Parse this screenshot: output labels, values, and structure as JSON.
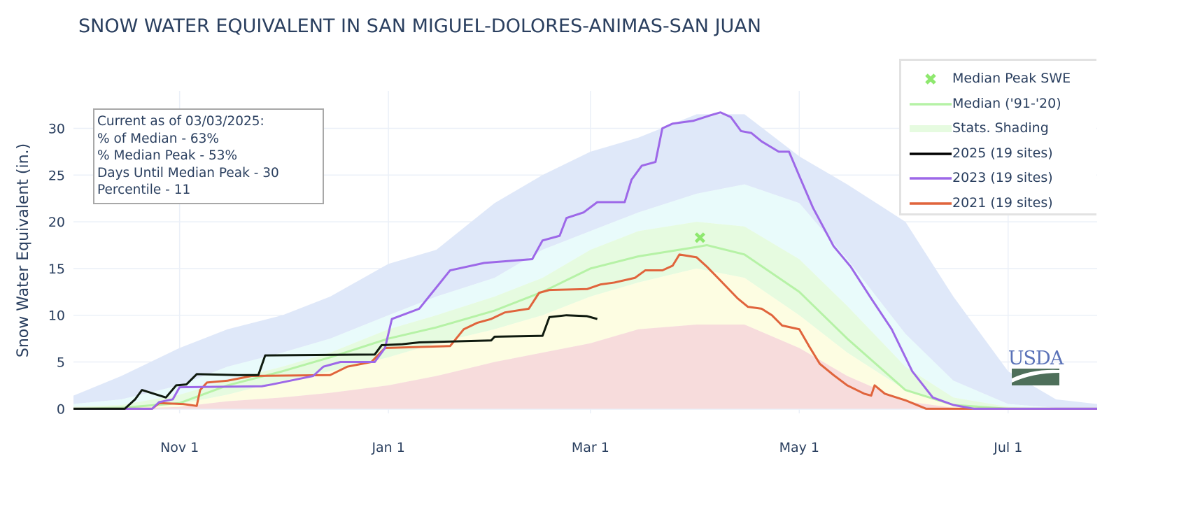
{
  "chart_data": {
    "type": "area",
    "title": "SNOW WATER EQUIVALENT IN SAN MIGUEL-DOLORES-ANIMAS-SAN JUAN",
    "ylabel": "Snow Water Equivalent (in.)",
    "xlabel": "",
    "x_range": [
      "10-01",
      "07-27"
    ],
    "ylim": [
      -0.5,
      34
    ],
    "y_ticks": [
      0,
      5,
      10,
      15,
      20,
      25,
      30
    ],
    "x_ticks": [
      {
        "date": "11-01",
        "label": "Nov 1"
      },
      {
        "date": "01-01",
        "label": "Jan 1"
      },
      {
        "date": "03-01",
        "label": "Mar 1"
      },
      {
        "date": "05-01",
        "label": "May 1"
      },
      {
        "date": "07-01",
        "label": "Jul 1"
      }
    ],
    "grid": true,
    "legend_placement": "top-right",
    "annotation": {
      "lines": [
        "Current as of 03/03/2025:",
        "% of Median - 63%",
        "% Median Peak - 53%",
        "Days Until Median Peak - 30",
        "Percentile - 11"
      ]
    },
    "stats_shading": {
      "dates": [
        "10-01",
        "10-15",
        "11-01",
        "11-15",
        "12-01",
        "12-15",
        "01-01",
        "01-15",
        "02-01",
        "02-15",
        "03-01",
        "03-15",
        "04-01",
        "04-15",
        "05-01",
        "05-15",
        "06-01",
        "06-15",
        "07-01",
        "07-15",
        "07-27"
      ],
      "min": [
        0,
        0,
        0,
        0,
        0,
        0,
        0,
        0,
        0,
        0,
        0,
        0,
        0,
        0,
        0,
        0,
        0,
        0,
        0,
        0,
        0
      ],
      "p10": [
        0,
        0,
        0.2,
        0.8,
        1.2,
        1.7,
        2.5,
        3.5,
        5,
        6,
        7,
        8.5,
        9,
        9,
        6.5,
        3.5,
        0.8,
        0.1,
        0,
        0,
        0
      ],
      "p30": [
        0,
        0.1,
        0.5,
        1.5,
        3,
        4,
        5.5,
        7,
        8.5,
        10,
        12,
        13.5,
        15,
        14,
        10,
        6,
        2,
        0.4,
        0,
        0,
        0
      ],
      "p70": [
        0.2,
        0.4,
        1.5,
        3,
        4.5,
        6,
        8.5,
        10,
        12,
        14,
        17,
        19,
        20,
        19.5,
        16,
        11,
        4.5,
        1.2,
        0.2,
        0,
        0
      ],
      "p90": [
        0.5,
        1,
        2.5,
        4.5,
        6,
        7.5,
        10,
        12,
        14,
        17,
        19,
        21,
        23,
        24,
        22,
        16,
        8,
        3,
        0.5,
        0.1,
        0
      ],
      "max": [
        1.4,
        3.5,
        6.5,
        8.5,
        10,
        12,
        15.5,
        17,
        22,
        25,
        27.5,
        29,
        31.5,
        31.5,
        27,
        24,
        20,
        12,
        4,
        1,
        0.5
      ],
      "colors": {
        "min_p10": "#f7dcdc",
        "p10_p30": "#fdfde2",
        "p30_p70": "#e6fbe0",
        "p70_p90": "#e9fbfb",
        "p90_max": "#dfe8f9"
      }
    },
    "median_peak": {
      "name": "Median Peak SWE",
      "date": "04-02",
      "value": 18.3,
      "color": "#8ee86e"
    },
    "series": [
      {
        "name": "Median ('91-'20)",
        "color": "#b6f2a6",
        "points": [
          [
            "10-01",
            0
          ],
          [
            "10-15",
            0.1
          ],
          [
            "11-01",
            0.6
          ],
          [
            "11-15",
            2.5
          ],
          [
            "12-01",
            4
          ],
          [
            "12-15",
            5.5
          ],
          [
            "01-01",
            7.5
          ],
          [
            "01-15",
            8.7
          ],
          [
            "02-01",
            10.5
          ],
          [
            "02-15",
            12.5
          ],
          [
            "03-01",
            15
          ],
          [
            "03-15",
            16.3
          ],
          [
            "04-01",
            17.3
          ],
          [
            "04-04",
            17.5
          ],
          [
            "04-15",
            16.5
          ],
          [
            "05-01",
            12.5
          ],
          [
            "05-15",
            7.5
          ],
          [
            "06-01",
            2
          ],
          [
            "06-15",
            0.4
          ],
          [
            "07-01",
            0
          ],
          [
            "07-27",
            0
          ]
        ]
      },
      {
        "name": "2021 (19 sites)",
        "color": "#e0643c",
        "points": [
          [
            "10-01",
            0
          ],
          [
            "10-24",
            0
          ],
          [
            "10-26",
            0.6
          ],
          [
            "11-02",
            0.5
          ],
          [
            "11-06",
            0.3
          ],
          [
            "11-07",
            2
          ],
          [
            "11-09",
            2.8
          ],
          [
            "11-15",
            3
          ],
          [
            "11-22",
            3.5
          ],
          [
            "12-15",
            3.6
          ],
          [
            "12-20",
            4.5
          ],
          [
            "12-27",
            5
          ],
          [
            "12-31",
            6.5
          ],
          [
            "01-19",
            6.7
          ],
          [
            "01-23",
            8.5
          ],
          [
            "01-27",
            9.2
          ],
          [
            "01-31",
            9.6
          ],
          [
            "02-04",
            10.3
          ],
          [
            "02-11",
            10.7
          ],
          [
            "02-14",
            12.4
          ],
          [
            "02-17",
            12.7
          ],
          [
            "02-28",
            12.8
          ],
          [
            "03-04",
            13.3
          ],
          [
            "03-08",
            13.5
          ],
          [
            "03-14",
            14
          ],
          [
            "03-17",
            14.8
          ],
          [
            "03-22",
            14.8
          ],
          [
            "03-25",
            15.3
          ],
          [
            "03-27",
            16.5
          ],
          [
            "04-01",
            16.2
          ],
          [
            "04-04",
            15.2
          ],
          [
            "04-08",
            13.7
          ],
          [
            "04-13",
            11.8
          ],
          [
            "04-16",
            10.9
          ],
          [
            "04-20",
            10.7
          ],
          [
            "04-23",
            10
          ],
          [
            "04-26",
            8.9
          ],
          [
            "05-01",
            8.5
          ],
          [
            "05-04",
            6.6
          ],
          [
            "05-07",
            4.8
          ],
          [
            "05-11",
            3.6
          ],
          [
            "05-15",
            2.5
          ],
          [
            "05-20",
            1.6
          ],
          [
            "05-22",
            1.4
          ],
          [
            "05-23",
            2.5
          ],
          [
            "05-26",
            1.6
          ],
          [
            "06-01",
            0.9
          ],
          [
            "06-07",
            0
          ],
          [
            "07-27",
            0
          ]
        ]
      },
      {
        "name": "2023 (19 sites)",
        "color": "#9d68e8",
        "points": [
          [
            "10-01",
            0
          ],
          [
            "10-24",
            0
          ],
          [
            "10-26",
            0.7
          ],
          [
            "10-30",
            1
          ],
          [
            "11-01",
            2.3
          ],
          [
            "11-25",
            2.4
          ],
          [
            "11-28",
            2.6
          ],
          [
            "12-10",
            3.5
          ],
          [
            "12-13",
            4.5
          ],
          [
            "12-18",
            5
          ],
          [
            "12-28",
            5
          ],
          [
            "12-31",
            6.5
          ],
          [
            "01-02",
            9.6
          ],
          [
            "01-10",
            10.7
          ],
          [
            "01-19",
            14.8
          ],
          [
            "01-29",
            15.6
          ],
          [
            "02-12",
            16
          ],
          [
            "02-15",
            18
          ],
          [
            "02-20",
            18.5
          ],
          [
            "02-22",
            20.4
          ],
          [
            "02-27",
            21
          ],
          [
            "03-03",
            22.1
          ],
          [
            "03-11",
            22.1
          ],
          [
            "03-13",
            24.5
          ],
          [
            "03-16",
            26
          ],
          [
            "03-20",
            26.4
          ],
          [
            "03-22",
            30
          ],
          [
            "03-25",
            30.5
          ],
          [
            "03-31",
            30.8
          ],
          [
            "04-06",
            31.5
          ],
          [
            "04-08",
            31.7
          ],
          [
            "04-11",
            31.2
          ],
          [
            "04-14",
            29.7
          ],
          [
            "04-17",
            29.5
          ],
          [
            "04-20",
            28.6
          ],
          [
            "04-25",
            27.5
          ],
          [
            "04-28",
            27.5
          ],
          [
            "05-01",
            24.9
          ],
          [
            "05-05",
            21.5
          ],
          [
            "05-11",
            17.4
          ],
          [
            "05-16",
            15.2
          ],
          [
            "05-22",
            11.8
          ],
          [
            "05-28",
            8.5
          ],
          [
            "06-03",
            4
          ],
          [
            "06-09",
            1.2
          ],
          [
            "06-15",
            0.4
          ],
          [
            "06-21",
            0
          ],
          [
            "07-27",
            0
          ]
        ]
      },
      {
        "name": "2025 (19 sites)",
        "color": "#0f1a0f",
        "points": [
          [
            "10-01",
            0
          ],
          [
            "10-16",
            0
          ],
          [
            "10-19",
            1
          ],
          [
            "10-21",
            2
          ],
          [
            "10-28",
            1.2
          ],
          [
            "10-31",
            2.5
          ],
          [
            "11-03",
            2.6
          ],
          [
            "11-06",
            3.7
          ],
          [
            "11-18",
            3.6
          ],
          [
            "11-24",
            3.6
          ],
          [
            "11-26",
            5.7
          ],
          [
            "12-28",
            5.8
          ],
          [
            "12-30",
            6.8
          ],
          [
            "01-05",
            6.9
          ],
          [
            "01-10",
            7.1
          ],
          [
            "01-31",
            7.3
          ],
          [
            "02-01",
            7.7
          ],
          [
            "02-15",
            7.8
          ],
          [
            "02-17",
            9.8
          ],
          [
            "02-22",
            10
          ],
          [
            "02-28",
            9.9
          ],
          [
            "03-01",
            9.8
          ],
          [
            "03-03",
            9.6
          ]
        ]
      }
    ],
    "legend": [
      {
        "label": "Median Peak SWE",
        "symbol": "x-marker",
        "color": "#8ee86e"
      },
      {
        "label": "Median ('91-'20)",
        "symbol": "line",
        "color": "#b6f2a6"
      },
      {
        "label": "Stats. Shading",
        "symbol": "band",
        "color": "#e6fbe0"
      },
      {
        "label": "2025 (19 sites)",
        "symbol": "line",
        "color": "#000000"
      },
      {
        "label": "2023 (19 sites)",
        "symbol": "line",
        "color": "#9d68e8"
      },
      {
        "label": "2021 (19 sites)",
        "symbol": "line",
        "color": "#e0643c"
      }
    ],
    "logo": "USDA"
  }
}
